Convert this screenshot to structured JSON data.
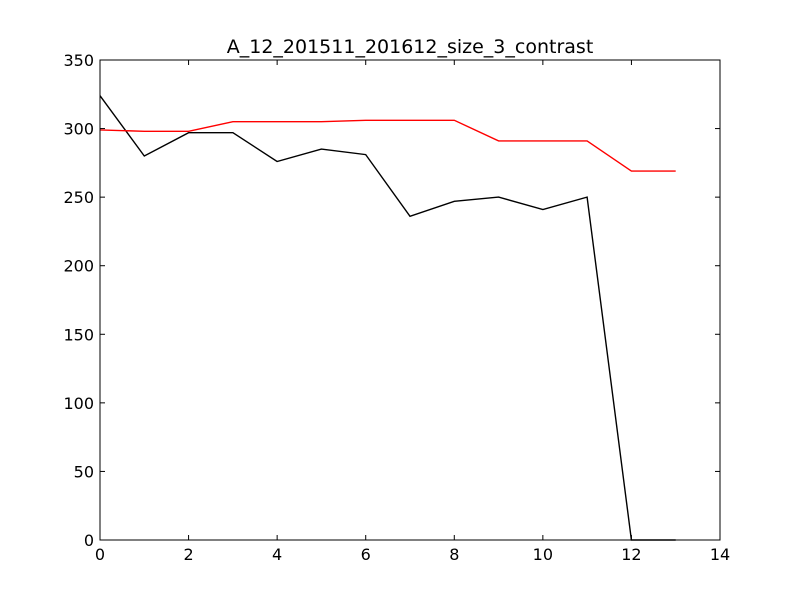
{
  "chart_data": {
    "type": "line",
    "title": "A_12_201511_201612_size_3_contrast",
    "xlabel": "",
    "ylabel": "",
    "xlim": [
      0,
      14
    ],
    "ylim": [
      0,
      350
    ],
    "xticks": [
      0,
      2,
      4,
      6,
      8,
      10,
      12,
      14
    ],
    "yticks": [
      0,
      50,
      100,
      150,
      200,
      250,
      300,
      350
    ],
    "xtick_labels": [
      "0",
      "2",
      "4",
      "6",
      "8",
      "10",
      "12",
      "14"
    ],
    "ytick_labels": [
      "0",
      "50",
      "100",
      "150",
      "200",
      "250",
      "300",
      "350"
    ],
    "grid": false,
    "series": [
      {
        "color": "#000000",
        "x": [
          0,
          1,
          2,
          3,
          4,
          5,
          6,
          7,
          8,
          9,
          10,
          11,
          12,
          13
        ],
        "values": [
          324,
          280,
          297,
          297,
          276,
          285,
          281,
          236,
          247,
          250,
          241,
          250,
          0,
          0
        ]
      },
      {
        "color": "#ff0000",
        "x": [
          0,
          1,
          2,
          3,
          4,
          5,
          6,
          7,
          8,
          9,
          10,
          11,
          12,
          13
        ],
        "values": [
          299,
          298,
          298,
          305,
          305,
          305,
          306,
          306,
          306,
          291,
          291,
          291,
          269,
          269
        ]
      }
    ]
  }
}
